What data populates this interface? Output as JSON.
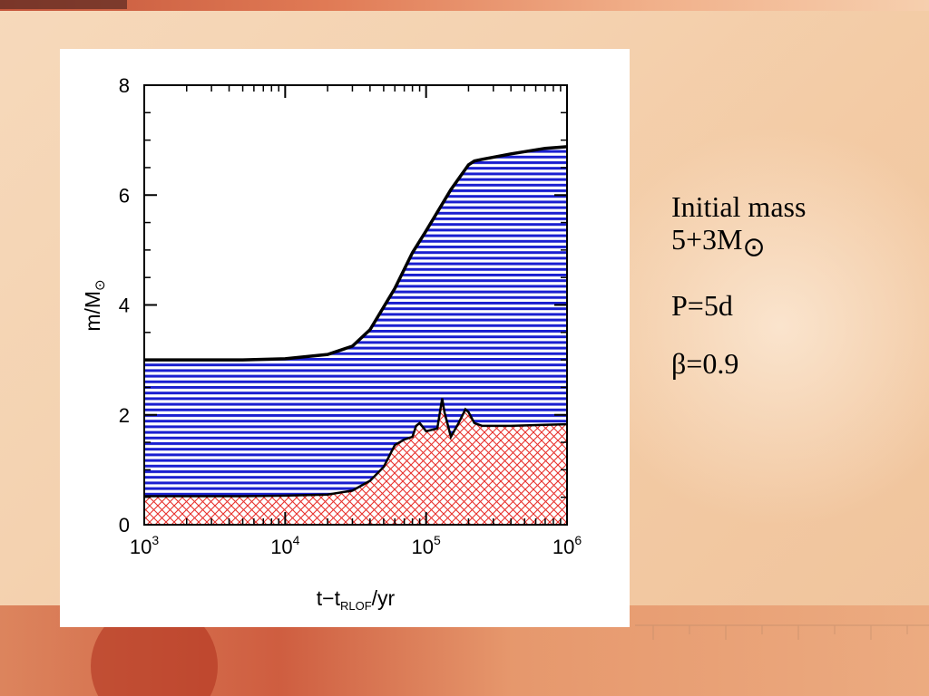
{
  "colors": {
    "envelope_fill": "#1a1fd0",
    "core_fill": "#e8312d",
    "curve": "#000000",
    "panel": "#ffffff"
  },
  "notes": {
    "mass_label": "Initial mass",
    "mass_value": "5+3M",
    "mass_symbol": "⊙",
    "period": "P=5d",
    "beta": "β=0.9"
  },
  "chart_data": {
    "type": "area",
    "x_scale": "log",
    "xlim": [
      1000,
      1000000
    ],
    "ylim": [
      0,
      8
    ],
    "xlabel": {
      "main": "t−t",
      "sub": "RLOF",
      "unit": "/yr"
    },
    "ylabel": {
      "main": "m/M",
      "sub": "⊙"
    },
    "x_ticks": [
      {
        "value": 1000,
        "base": "10",
        "exp": "3"
      },
      {
        "value": 10000,
        "base": "10",
        "exp": "4"
      },
      {
        "value": 100000,
        "base": "10",
        "exp": "5"
      },
      {
        "value": 1000000,
        "base": "10",
        "exp": "6"
      }
    ],
    "y_ticks": [
      {
        "value": 0,
        "label": "0"
      },
      {
        "value": 2,
        "label": "2"
      },
      {
        "value": 4,
        "label": "4"
      },
      {
        "value": 6,
        "label": "6"
      },
      {
        "value": 8,
        "label": "8"
      }
    ],
    "series": [
      {
        "role": "total mass (envelope)",
        "fill": "horizontal hatch, blue",
        "x": [
          1000,
          5000,
          10000,
          20000,
          30000,
          40000,
          60000,
          80000,
          100000,
          150000,
          200000,
          220000,
          250000,
          400000,
          700000,
          1000000
        ],
        "y": [
          3.0,
          3.0,
          3.02,
          3.1,
          3.25,
          3.55,
          4.3,
          4.95,
          5.35,
          6.1,
          6.55,
          6.62,
          6.65,
          6.75,
          6.85,
          6.88
        ]
      },
      {
        "role": "core mass",
        "fill": "crosshatch, red",
        "x": [
          1000,
          5000,
          10000,
          20000,
          30000,
          40000,
          50000,
          60000,
          70000,
          80000,
          85000,
          90000,
          100000,
          120000,
          130000,
          135000,
          150000,
          170000,
          190000,
          200000,
          220000,
          250000,
          400000,
          700000,
          1000000
        ],
        "y": [
          0.52,
          0.52,
          0.53,
          0.55,
          0.62,
          0.8,
          1.05,
          1.45,
          1.55,
          1.6,
          1.8,
          1.85,
          1.7,
          1.75,
          2.3,
          2.05,
          1.6,
          1.85,
          2.1,
          2.05,
          1.85,
          1.8,
          1.8,
          1.82,
          1.83
        ]
      }
    ]
  }
}
